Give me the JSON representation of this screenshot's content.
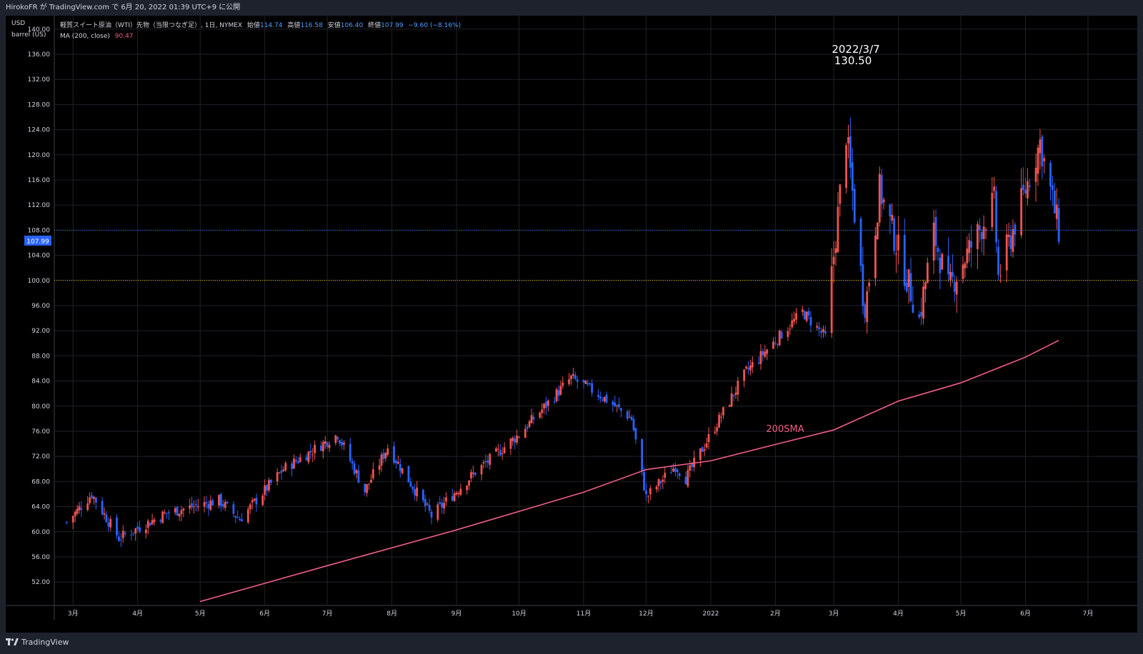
{
  "published_by": "HirokoFR が TradingView.com で 6月 20, 2022 01:39 UTC+9 に公開",
  "footer": {
    "brand": "TradingView"
  },
  "colors": {
    "up": "#ef5350",
    "down": "#2962ff",
    "ma": "#f15e8a",
    "current_line": "#2962ff",
    "ref_line": "#f5c000"
  },
  "chart_data": {
    "type": "candlestick",
    "axis": {
      "unit_top": "USD",
      "unit_bottom": "barrel (US)",
      "ylim": [
        48.5,
        141
      ],
      "grid": true
    },
    "header": {
      "symbol": "軽質スイート原油（WTI）先物（当限つなぎ足）, 1日, NYMEX",
      "open_label": "始値",
      "open": "114.74",
      "high_label": "高値",
      "high": "116.58",
      "low_label": "安値",
      "low": "106.40",
      "close_label": "終値",
      "close": "107.99",
      "change": "−9.60 (−8.16%)",
      "ma_label": "MA (200, close)",
      "ma_value": "90.47"
    },
    "y_ticks": [
      "52.00",
      "56.00",
      "60.00",
      "64.00",
      "68.00",
      "72.00",
      "76.00",
      "80.00",
      "84.00",
      "88.00",
      "92.00",
      "96.00",
      "100.00",
      "104.00",
      "108.00",
      "112.00",
      "116.00",
      "120.00",
      "124.00",
      "128.00",
      "132.00",
      "136.00",
      "140.00"
    ],
    "x_ticks": [
      "3月",
      "4月",
      "5月",
      "6月",
      "7月",
      "8月",
      "9月",
      "10月",
      "11月",
      "12月",
      "2022",
      "2月",
      "3月",
      "4月",
      "5月",
      "6月",
      "7月"
    ],
    "current_price": {
      "label": "107.99",
      "value": 107.99
    },
    "reference_line": {
      "value": 100
    },
    "annotations": [
      {
        "text": "2022/3/7",
        "value_text": "130.50",
        "date": "2022-03-07",
        "value": 130.5
      },
      {
        "text": "200SMA"
      }
    ],
    "price_path": [
      {
        "date": "2021-02-26",
        "close": 61.5
      },
      {
        "date": "2021-03-10",
        "close": 66.0
      },
      {
        "date": "2021-03-23",
        "close": 59.0
      },
      {
        "date": "2021-04-15",
        "close": 63.0
      },
      {
        "date": "2021-05-10",
        "close": 65.0
      },
      {
        "date": "2021-05-20",
        "close": 62.0
      },
      {
        "date": "2021-06-10",
        "close": 70.0
      },
      {
        "date": "2021-07-06",
        "close": 75.5
      },
      {
        "date": "2021-07-19",
        "close": 66.5
      },
      {
        "date": "2021-07-30",
        "close": 73.5
      },
      {
        "date": "2021-08-20",
        "close": 62.5
      },
      {
        "date": "2021-09-10",
        "close": 69.5
      },
      {
        "date": "2021-10-01",
        "close": 75.5
      },
      {
        "date": "2021-10-26",
        "close": 84.5
      },
      {
        "date": "2021-11-10",
        "close": 81.5
      },
      {
        "date": "2021-11-24",
        "close": 78.0
      },
      {
        "date": "2021-12-01",
        "close": 65.5
      },
      {
        "date": "2021-12-15",
        "close": 70.5
      },
      {
        "date": "2021-12-20",
        "close": 68.5
      },
      {
        "date": "2022-01-18",
        "close": 85.5
      },
      {
        "date": "2022-02-14",
        "close": 95.0
      },
      {
        "date": "2022-02-25",
        "close": 91.0
      },
      {
        "date": "2022-03-07",
        "close": 123.5
      },
      {
        "date": "2022-03-16",
        "close": 95.0
      },
      {
        "date": "2022-03-23",
        "close": 114.5
      },
      {
        "date": "2022-04-11",
        "close": 94.0
      },
      {
        "date": "2022-04-18",
        "close": 107.5
      },
      {
        "date": "2022-04-25",
        "close": 98.5
      },
      {
        "date": "2022-05-17",
        "close": 112.5
      },
      {
        "date": "2022-05-19",
        "close": 100.5
      },
      {
        "date": "2022-06-08",
        "close": 122.0
      },
      {
        "date": "2022-06-17",
        "close": 107.99
      }
    ],
    "ma200_path": [
      {
        "date": "2021-05-01",
        "value": 48.9
      },
      {
        "date": "2021-07-01",
        "value": 54.6
      },
      {
        "date": "2021-09-01",
        "value": 60.3
      },
      {
        "date": "2021-11-01",
        "value": 66.3
      },
      {
        "date": "2021-12-01",
        "value": 69.9
      },
      {
        "date": "2022-01-01",
        "value": 71.3
      },
      {
        "date": "2022-02-01",
        "value": 73.9
      },
      {
        "date": "2022-03-01",
        "value": 76.2
      },
      {
        "date": "2022-04-01",
        "value": 80.8
      },
      {
        "date": "2022-05-01",
        "value": 83.7
      },
      {
        "date": "2022-06-01",
        "value": 87.8
      },
      {
        "date": "2022-06-17",
        "value": 90.47
      }
    ]
  }
}
